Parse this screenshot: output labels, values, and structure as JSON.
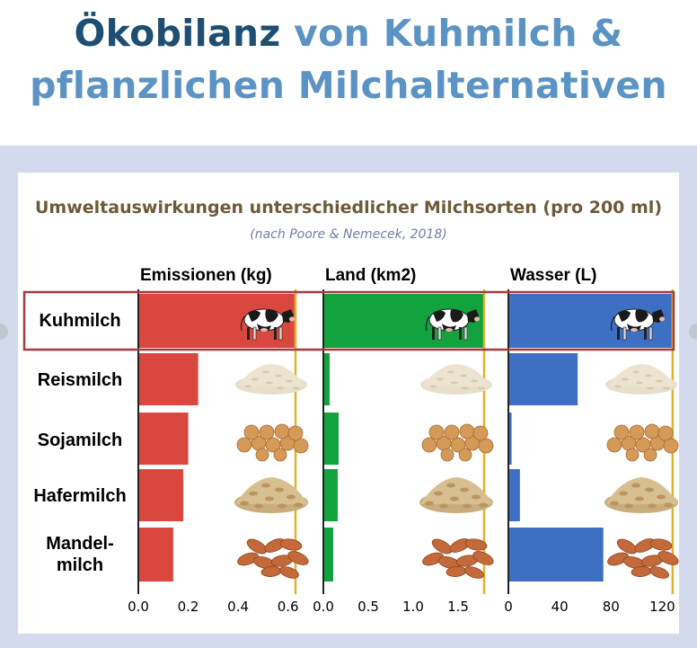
{
  "title": {
    "line1_dark": "Ökobilanz",
    "line1_light": "von Kuhmilch &",
    "line2": "pflanzlichen Milchalternativen"
  },
  "chart_data": {
    "type": "bar",
    "title": "Umweltauswirkungen unterschiedlicher Milchsorten (pro 200 ml)",
    "subtitle": "(nach Poore & Nemecek, 2018)",
    "categories": [
      "Kuhmilch",
      "Reismilch",
      "Sojamilch",
      "Hafermilch",
      "Mandel-|milch"
    ],
    "panels": [
      {
        "name": "Emissionen (kg)",
        "color": "#d9473f",
        "xlim": [
          0,
          0.72
        ],
        "ticks": [
          0,
          0.2,
          0.4,
          0.6
        ],
        "tick_labels": [
          "0.0",
          "0.2",
          "0.4",
          "0.6"
        ],
        "reference_line": 0.63,
        "values": [
          0.63,
          0.24,
          0.2,
          0.18,
          0.14
        ]
      },
      {
        "name": "Land (km2)",
        "color": "#12a23e",
        "xlim": [
          0,
          2.0
        ],
        "ticks": [
          0,
          0.5,
          1.0,
          1.5
        ],
        "tick_labels": [
          "0.0",
          "0.5",
          "1.0",
          "1.5"
        ],
        "reference_line": 1.79,
        "values": [
          1.79,
          0.07,
          0.17,
          0.16,
          0.11
        ]
      },
      {
        "name": "Wasser (L)",
        "color": "#3d70c2",
        "xlim": [
          0,
          140
        ],
        "ticks": [
          0,
          40,
          80,
          120
        ],
        "tick_labels": [
          "0",
          "40",
          "80",
          "120"
        ],
        "reference_line": 128,
        "values": [
          128,
          54,
          2.5,
          9,
          74
        ]
      }
    ],
    "highlight": "Kuhmilch",
    "row_icons": [
      "cow-icon",
      "rice-grains-icon",
      "soybeans-icon",
      "oat-flakes-icon",
      "almonds-icon"
    ],
    "colors": {
      "reference_line": "#e2b22b",
      "highlight_border": "#a83a3f"
    }
  }
}
